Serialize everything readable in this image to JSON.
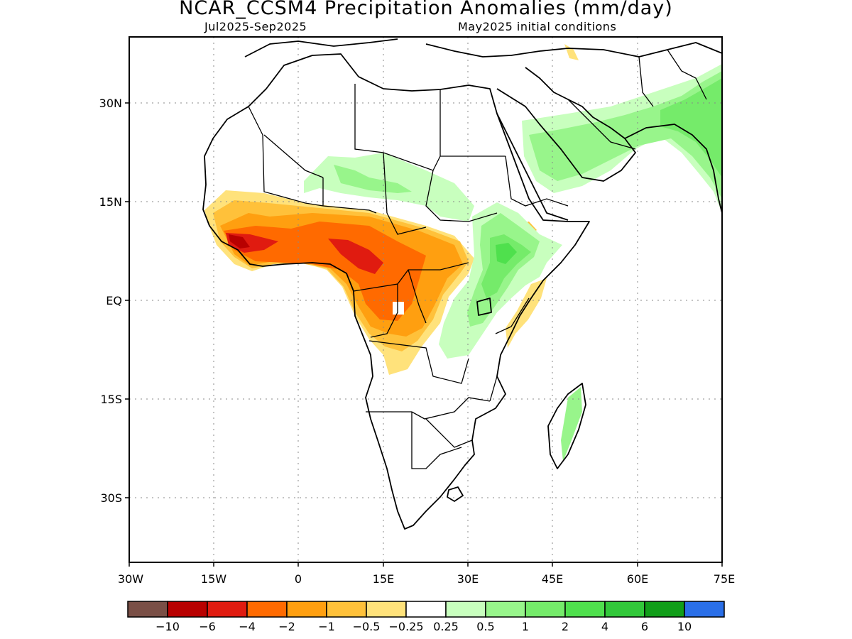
{
  "header": {
    "title": "NCAR_CCSM4 Precipitation Anomalies (mm/day)",
    "period": "Jul2025-Sep2025",
    "init": "May2025 initial conditions"
  },
  "map": {
    "x_ticks": [
      "30W",
      "15W",
      "0",
      "15E",
      "30E",
      "45E",
      "60E",
      "75E"
    ],
    "y_ticks": [
      "30N",
      "15N",
      "EQ",
      "15S",
      "30S"
    ],
    "lon_range": [
      -30,
      75
    ],
    "lat_range": [
      -40,
      40
    ],
    "grid": "dotted"
  },
  "legend": {
    "colors": [
      "#7a4f46",
      "#b80000",
      "#e01b10",
      "#ff6a00",
      "#ff9f10",
      "#ffc13a",
      "#ffe27b",
      "#ffffff",
      "#c8ffbe",
      "#98f58b",
      "#75eb6a",
      "#4fe04d",
      "#32c83a",
      "#119e19",
      "#2a6fe8"
    ],
    "labels": [
      "-10",
      "-6",
      "-4",
      "-2",
      "-1",
      "-0.5",
      "-0.25",
      "0.25",
      "0.5",
      "1",
      "2",
      "4",
      "6",
      "10"
    ]
  }
}
